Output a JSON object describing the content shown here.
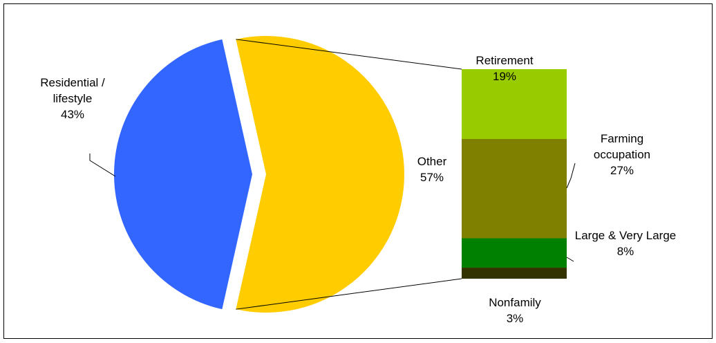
{
  "chart_data": {
    "type": "pie",
    "categories": [
      "Residential / lifestyle",
      "Other"
    ],
    "values": [
      43,
      57
    ],
    "value_labels": [
      "43%",
      "57%"
    ],
    "colors": [
      "#3366ff",
      "#ffcc00"
    ],
    "bar_of_pie": {
      "categories": [
        "Retirement",
        "Farming occupation",
        "Large & Very Large",
        "Nonfamily"
      ],
      "values": [
        19,
        27,
        8,
        3
      ],
      "value_labels": [
        "19%",
        "27%",
        "8%",
        "3%"
      ],
      "colors": [
        "#99cc00",
        "#808000",
        "#008000",
        "#333300"
      ]
    }
  }
}
